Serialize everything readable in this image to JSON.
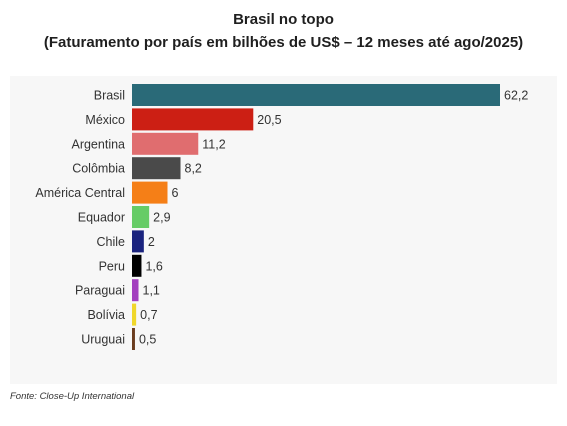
{
  "chart_data": {
    "type": "bar",
    "orientation": "horizontal",
    "title": "Brasil no topo",
    "subtitle": "(Faturamento por país em bilhões de US$ – 12 meses até ago/2025)",
    "categories": [
      "Brasil",
      "México",
      "Argentina",
      "Colômbia",
      "América Central",
      "Equador",
      "Chile",
      "Peru",
      "Paraguai",
      "Bolívia",
      "Uruguai"
    ],
    "values": [
      62.2,
      20.5,
      11.2,
      8.2,
      6,
      2.9,
      2,
      1.6,
      1.1,
      0.7,
      0.5
    ],
    "value_labels": [
      "62,2",
      "20,5",
      "11,2",
      "8,2",
      "6",
      "2,9",
      "2",
      "1,6",
      "1,1",
      "0,7",
      "0,5"
    ],
    "colors": [
      "#2a6a78",
      "#cc1f14",
      "#e06d6f",
      "#4a4a4a",
      "#f57f17",
      "#66cc66",
      "#1a237e",
      "#000000",
      "#a33fbf",
      "#f0d72a",
      "#6b3d1f"
    ],
    "xlim": [
      0,
      62.2
    ],
    "grid": false,
    "legend": "none"
  },
  "source": "Fonte: Close-Up International"
}
